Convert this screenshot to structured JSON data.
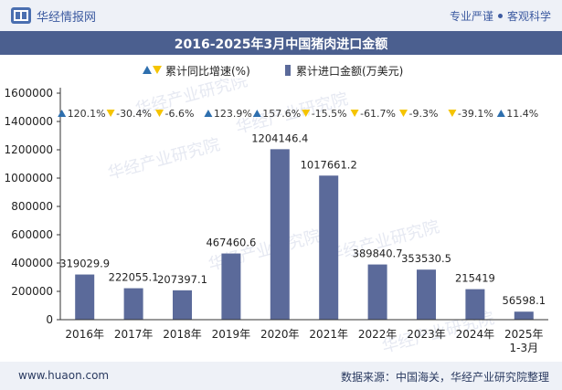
{
  "header": {
    "brand": "华经情报网",
    "tagline_left": "专业严谨",
    "tagline_right": "客观科学"
  },
  "footer": {
    "website": "www.huaon.com",
    "source": "数据来源：中国海关，华经产业研究院整理"
  },
  "watermark": "华经产业研究院",
  "colors": {
    "bar": "#5b6a9a",
    "up_marker": "#2e6fae",
    "down_marker": "#f5c400",
    "title_bg": "#4b5f8f"
  },
  "chart_data": {
    "type": "bar",
    "title": "2016-2025年3月中国猪肉进口金额",
    "categories": [
      "2016年",
      "2017年",
      "2018年",
      "2019年",
      "2020年",
      "2021年",
      "2022年",
      "2023年",
      "2024年",
      "2025年\n1-3月"
    ],
    "ylim": [
      0,
      1600000
    ],
    "yticks": [
      0,
      200000,
      400000,
      600000,
      800000,
      1000000,
      1200000,
      1400000,
      1600000
    ],
    "ytick_labels": [
      "0",
      "200000",
      "400000",
      "600000",
      "800000",
      "1000000",
      "1200000",
      "1400000",
      "1600000"
    ],
    "series": [
      {
        "name": "累计进口金额(万美元)",
        "values": [
          319029.9,
          222055.1,
          207397.1,
          467460.6,
          1204146.4,
          1017661.2,
          389840.7,
          353530.5,
          215419,
          56598.1
        ],
        "labels": [
          "319029.9",
          "222055.1",
          "207397.1",
          "467460.6",
          "1204146.4",
          "1017661.2",
          "389840.7",
          "353530.5",
          "215419",
          "56598.1"
        ]
      },
      {
        "name": "累计同比增速(%)",
        "values": [
          120.1,
          -30.4,
          -6.6,
          123.9,
          157.6,
          -15.5,
          -61.7,
          -9.3,
          -39.1,
          11.4
        ],
        "labels": [
          "120.1%",
          "-30.4%",
          "-6.6%",
          "123.9%",
          "157.6%",
          "-15.5%",
          "-61.7%",
          "-9.3%",
          "-39.1%",
          "11.4%"
        ]
      }
    ],
    "legend_position": "top-center",
    "grid": false
  }
}
